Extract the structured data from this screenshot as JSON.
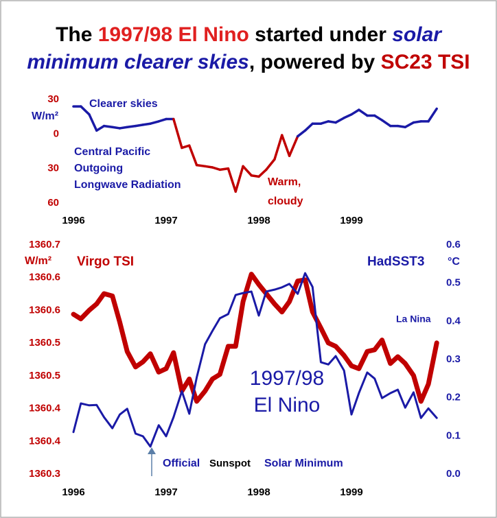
{
  "title_lines": [
    [
      {
        "text": "The ",
        "color": "#000000",
        "italic": false
      },
      {
        "text": "1997/98 El Nino",
        "color": "#e02020",
        "italic": false
      },
      {
        "text": " started under ",
        "color": "#000000",
        "italic": false
      },
      {
        "text": "solar",
        "color": "#1a1aa6",
        "italic": true
      }
    ],
    [
      {
        "text": "minimum clearer skies",
        "color": "#1a1aa6",
        "italic": true
      },
      {
        "text": ", powered by ",
        "color": "#000000",
        "italic": false
      },
      {
        "text": "SC23 TSI",
        "color": "#c00000",
        "italic": false
      }
    ]
  ],
  "chart_data": [
    {
      "type": "line",
      "y_unit": "W/m²",
      "annotations": [
        "Clearer skies",
        "Central Pacific",
        "Outgoing",
        "Longwave Radiation",
        "Warm,",
        "cloudy"
      ],
      "color_above": "#1a1aa6",
      "color_below": "#c00000",
      "xlim": [
        1996,
        2000
      ],
      "xticks": [
        1996,
        1997,
        1998,
        1999
      ],
      "ylim": [
        -60,
        30
      ],
      "yticks": [
        30,
        0,
        {
          "value": -30,
          "label": "30"
        },
        {
          "value": -60,
          "label": "60"
        }
      ],
      "x": [
        1996,
        1996.08,
        1996.17,
        1996.25,
        1996.33,
        1996.42,
        1996.5,
        1996.58,
        1996.67,
        1996.75,
        1996.83,
        1996.92,
        1997,
        1997.08,
        1997.17,
        1997.25,
        1997.33,
        1997.42,
        1997.5,
        1997.58,
        1997.67,
        1997.75,
        1997.83,
        1997.92,
        1998,
        1998.08,
        1998.17,
        1998.25,
        1998.33,
        1998.42,
        1998.5,
        1998.58,
        1998.67,
        1998.75,
        1998.83,
        1998.92,
        1999,
        1999.08,
        1999.17,
        1999.25,
        1999.33,
        1999.42,
        1999.5,
        1999.58,
        1999.67,
        1999.75,
        1999.83,
        1999.92
      ],
      "values": [
        24,
        24,
        17,
        3,
        7,
        6,
        5,
        6,
        7,
        8,
        9,
        11,
        13,
        13,
        -12,
        -10,
        -27,
        -28,
        -29,
        -31,
        -30,
        -50,
        -28,
        -36,
        -37,
        -31,
        -22,
        -1,
        -19,
        -2,
        3,
        9,
        9,
        11,
        10,
        14,
        17,
        21,
        16,
        16,
        12,
        7,
        7,
        6,
        10,
        11,
        11,
        22
      ]
    },
    {
      "type": "line",
      "y_unit": "W/m²",
      "y2_unit": "°C",
      "annotations": [
        "La Nina",
        "1997/98",
        "El Nino",
        "Official",
        "Sunspot",
        "Solar Minimum"
      ],
      "xlim": [
        1996,
        2000
      ],
      "xticks": [
        1996,
        1997,
        1998,
        1999
      ],
      "ylim": [
        1360.3,
        1360.7
      ],
      "yticks": [
        1360.7,
        {
          "value": 1360.6429,
          "label": "1360.6"
        },
        {
          "value": 1360.5857,
          "label": "1360.6"
        },
        {
          "value": 1360.5286,
          "label": "1360.5"
        },
        {
          "value": 1360.4714,
          "label": "1360.5"
        },
        {
          "value": 1360.4143,
          "label": "1360.4"
        },
        {
          "value": 1360.3571,
          "label": "1360.4"
        },
        1360.3
      ],
      "y2lim": [
        0,
        0.6
      ],
      "y2ticks": [
        0.6,
        0.5,
        0.4,
        0.3,
        0.2,
        0.1,
        {
          "value": 0,
          "label": "0.0"
        }
      ],
      "x": [
        1996,
        1996.08,
        1996.17,
        1996.25,
        1996.33,
        1996.42,
        1996.5,
        1996.58,
        1996.67,
        1996.75,
        1996.83,
        1996.92,
        1997,
        1997.08,
        1997.17,
        1997.25,
        1997.33,
        1997.42,
        1997.5,
        1997.58,
        1997.67,
        1997.75,
        1997.83,
        1997.92,
        1998,
        1998.08,
        1998.17,
        1998.25,
        1998.33,
        1998.42,
        1998.5,
        1998.58,
        1998.67,
        1998.75,
        1998.83,
        1998.92,
        1999,
        1999.08,
        1999.17,
        1999.25,
        1999.33,
        1999.42,
        1999.5,
        1999.58,
        1999.67,
        1999.75,
        1999.83,
        1999.92
      ],
      "series": [
        {
          "name": "Virgo TSI",
          "color": "#c00000",
          "axis": "y",
          "values": [
            1360.579,
            1360.571,
            1360.586,
            1360.597,
            1360.615,
            1360.611,
            1360.565,
            1360.514,
            1360.487,
            1360.496,
            1360.51,
            1360.478,
            1360.484,
            1360.512,
            1360.445,
            1360.466,
            1360.427,
            1360.445,
            1360.466,
            1360.474,
            1360.523,
            1360.523,
            1360.601,
            1360.649,
            1360.631,
            1360.615,
            1360.597,
            1360.583,
            1360.601,
            1360.637,
            1360.639,
            1360.583,
            1360.555,
            1360.529,
            1360.523,
            1360.507,
            1360.489,
            1360.484,
            1360.514,
            1360.517,
            1360.534,
            1360.493,
            1360.505,
            1360.493,
            1360.472,
            1360.427,
            1360.457,
            1360.529
          ]
        },
        {
          "name": "HadSST3",
          "color": "#1a1aa6",
          "axis": "y2",
          "values": [
            0.11,
            0.185,
            0.18,
            0.181,
            0.149,
            0.12,
            0.156,
            0.171,
            0.106,
            0.099,
            0.072,
            0.128,
            0.099,
            0.149,
            0.217,
            0.158,
            0.253,
            0.34,
            0.375,
            0.408,
            0.419,
            0.469,
            0.474,
            0.478,
            0.415,
            0.478,
            0.483,
            0.489,
            0.498,
            0.472,
            0.526,
            0.49,
            0.293,
            0.287,
            0.309,
            0.271,
            0.156,
            0.212,
            0.266,
            0.25,
            0.199,
            0.212,
            0.221,
            0.174,
            0.214,
            0.147,
            0.172,
            0.147
          ]
        }
      ]
    }
  ]
}
